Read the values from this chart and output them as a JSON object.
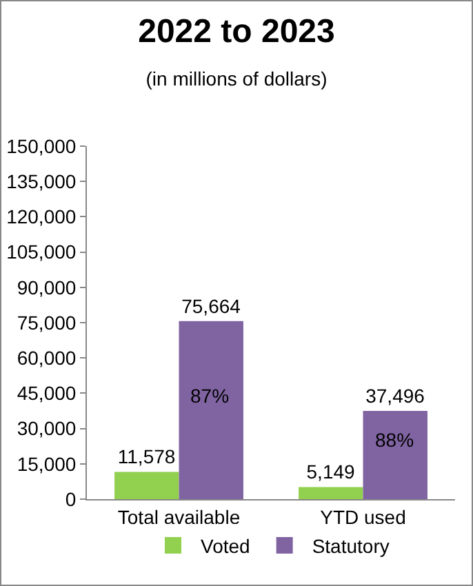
{
  "chart_data": {
    "type": "bar",
    "title": "2022 to 2023",
    "subtitle": "(in millions of dollars)",
    "categories": [
      "Total available",
      "YTD used"
    ],
    "series": [
      {
        "name": "Voted",
        "color": "#92d050",
        "values": [
          11578,
          5149
        ],
        "value_labels": [
          "11,578",
          "5,149"
        ]
      },
      {
        "name": "Statutory",
        "color": "#8064a2",
        "values": [
          75664,
          37496
        ],
        "value_labels": [
          "75,664",
          "37,496"
        ]
      }
    ],
    "ylim": [
      0,
      150000
    ],
    "yticks": [
      0,
      {
        "value": 15000,
        "label": "15,000"
      },
      {
        "value": 30000,
        "label": "30,000"
      },
      {
        "value": 45000,
        "label": "45,000"
      },
      {
        "value": 60000,
        "label": "60,000"
      },
      {
        "value": 75000,
        "label": "75,000"
      },
      {
        "value": 90000,
        "label": "90,000"
      },
      {
        "value": 105000,
        "label": "105,000"
      },
      {
        "value": 120000,
        "label": "120,000"
      },
      {
        "value": 135000,
        "label": "135,000"
      },
      {
        "value": 150000,
        "label": "150,000"
      }
    ],
    "annotations": [
      {
        "text": "87%",
        "x": "Total available",
        "y": 44000
      },
      {
        "text": "88%",
        "x": "YTD used",
        "y": 25000
      }
    ],
    "grid": false,
    "legend": "bottom"
  }
}
